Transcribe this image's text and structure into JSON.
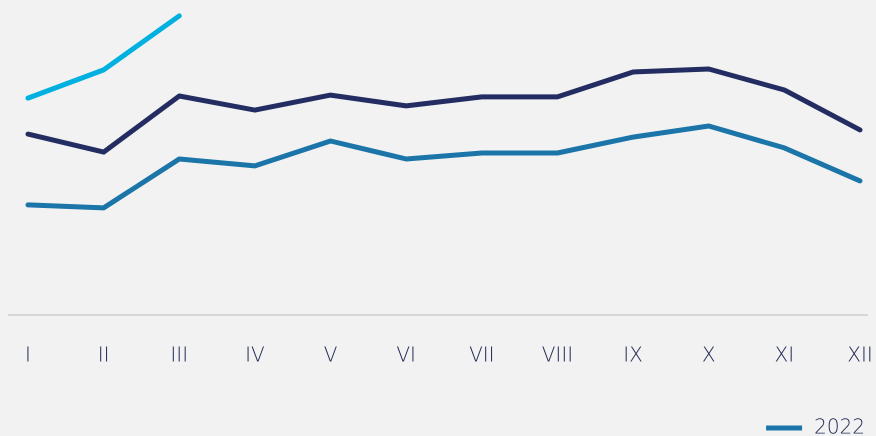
{
  "chart_data": {
    "type": "line",
    "categories": [
      "I",
      "II",
      "III",
      "IV",
      "V",
      "VI",
      "VII",
      "VIII",
      "IX",
      "X",
      "XI",
      "XII"
    ],
    "series": [
      {
        "name": "2022",
        "color": "#1b75a8",
        "values": [
          36.7,
          35.7,
          52,
          49.7,
          58,
          52,
          54,
          54,
          59.3,
          63,
          55.7,
          44.7
        ]
      },
      {
        "color": "#232d62",
        "values": [
          60.3,
          54.3,
          73,
          68.3,
          73.3,
          69.7,
          72.7,
          72.7,
          81,
          82,
          75,
          61.7
        ]
      },
      {
        "color": "#00b0e0",
        "values": [
          72.3,
          81.7,
          99.7,
          null,
          null,
          null,
          null,
          null,
          null,
          null,
          null,
          null
        ]
      }
    ],
    "ylim": [
      0,
      100
    ],
    "legend": "bottom-right"
  }
}
